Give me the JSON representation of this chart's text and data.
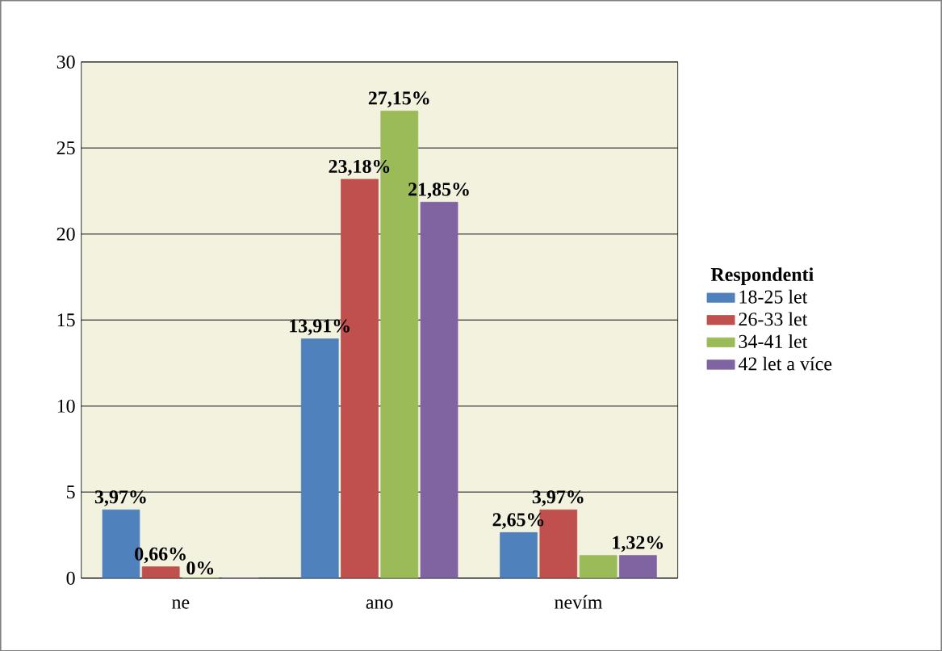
{
  "chart_data": {
    "type": "bar",
    "categories": [
      "ne",
      "ano",
      "nevím"
    ],
    "legend_title": "Respondenti",
    "series": [
      {
        "name": "18-25 let",
        "color": "#4f81bd",
        "values": [
          3.97,
          13.91,
          2.65
        ],
        "value_labels": [
          "3,97%",
          "13,91%",
          "2,65%"
        ]
      },
      {
        "name": "26-33 let",
        "color": "#c0504d",
        "values": [
          0.66,
          23.18,
          3.97
        ],
        "value_labels": [
          "0,66%",
          "23,18%",
          "3,97%"
        ]
      },
      {
        "name": "34-41 let",
        "color": "#9bbb59",
        "values": [
          0,
          27.15,
          1.32
        ],
        "value_labels": [
          "0%",
          "27,15%",
          null
        ]
      },
      {
        "name": "42 let a více",
        "color": "#8064a2",
        "values": [
          0,
          21.85,
          1.32
        ],
        "value_labels": [
          null,
          "21,85%",
          "1,32%"
        ]
      }
    ],
    "ylim": [
      0,
      30
    ],
    "yticks": [
      0,
      5,
      10,
      15,
      20,
      25,
      30
    ],
    "grid": "y",
    "legend": "right"
  }
}
